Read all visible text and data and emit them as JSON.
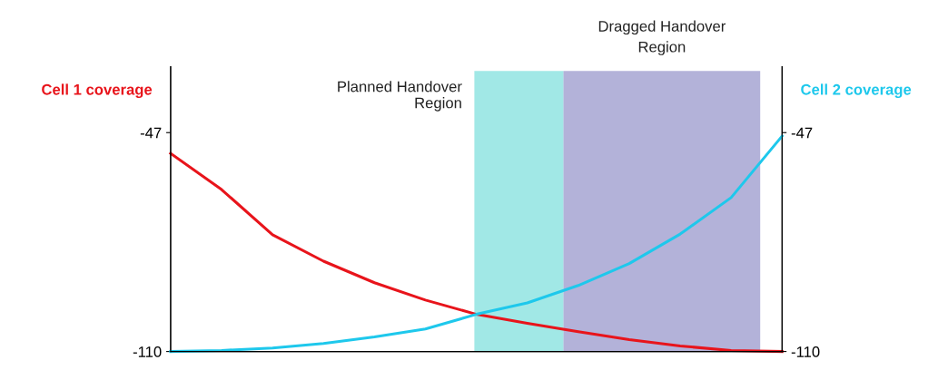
{
  "chart_data": {
    "type": "line",
    "categories": [
      null,
      null,
      null,
      null,
      null,
      null,
      null,
      null,
      null,
      null,
      null,
      null,
      null
    ],
    "series": [
      {
        "color": "#e8141b",
        "values": [
          -53.0,
          -63.4,
          -76.4,
          -84.0,
          -90.2,
          -95.2,
          -99.3,
          -101.9,
          -104.3,
          -106.6,
          -108.4,
          -109.7,
          -110
        ]
      },
      {
        "color": "#1ec8ec",
        "axis": "y2",
        "values": [
          -110,
          -109.7,
          -109.0,
          -107.7,
          -105.8,
          -103.5,
          -99.3,
          -96.0,
          -91.0,
          -84.7,
          -76.2,
          -65.7,
          -48.0
        ]
      }
    ],
    "ylabel": "Cell 1 coverage",
    "y2label": "Cell 2 coverage",
    "ylim": [
      -110,
      -28
    ],
    "yticks": [
      -110,
      -47
    ],
    "y2lim": [
      -110,
      -28
    ],
    "y2ticks": [
      -110,
      -47
    ],
    "annotations": [
      "Planned Handover\nRegion",
      "Dragged Handover\nRegion"
    ],
    "tick_labels": "y",
    "grid": false,
    "legend": false,
    "marker": "none",
    "line_style": "solid"
  }
}
